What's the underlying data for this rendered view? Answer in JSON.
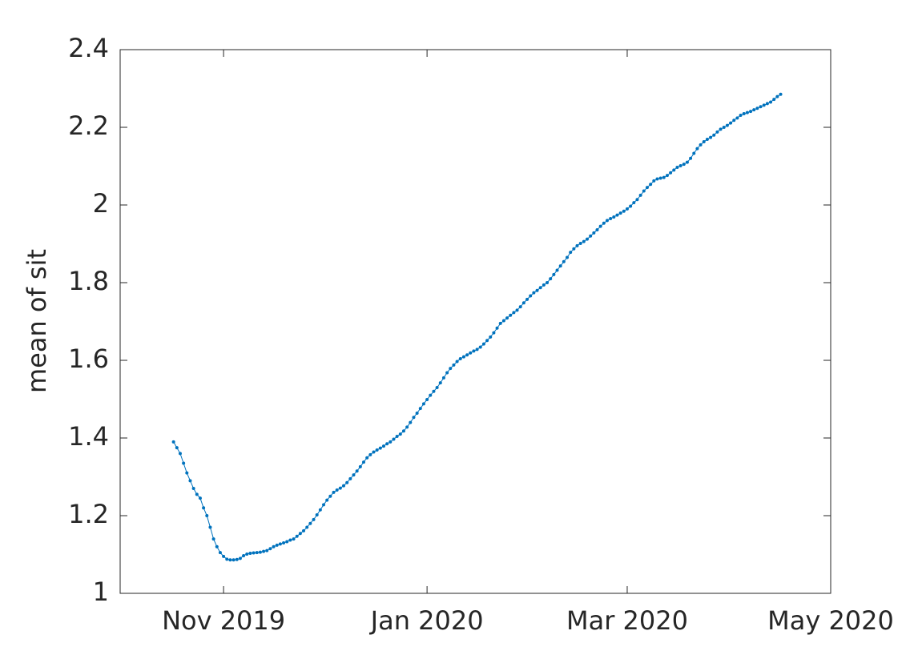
{
  "chart_data": {
    "type": "line",
    "y_label": "mean of sit",
    "x": [
      "2019-10-17",
      "2019-10-18",
      "2019-10-19",
      "2019-10-20",
      "2019-10-21",
      "2019-10-22",
      "2019-10-23",
      "2019-10-24",
      "2019-10-25",
      "2019-10-26",
      "2019-10-27",
      "2019-10-28",
      "2019-10-29",
      "2019-10-30",
      "2019-10-31",
      "2019-11-01",
      "2019-11-02",
      "2019-11-03",
      "2019-11-04",
      "2019-11-05",
      "2019-11-06",
      "2019-11-07",
      "2019-11-08",
      "2019-11-09",
      "2019-11-10",
      "2019-11-11",
      "2019-11-12",
      "2019-11-13",
      "2019-11-14",
      "2019-11-15",
      "2019-11-16",
      "2019-11-17",
      "2019-11-18",
      "2019-11-19",
      "2019-11-20",
      "2019-11-21",
      "2019-11-22",
      "2019-11-23",
      "2019-11-24",
      "2019-11-25",
      "2019-11-26",
      "2019-11-27",
      "2019-11-28",
      "2019-11-29",
      "2019-11-30",
      "2019-12-01",
      "2019-12-02",
      "2019-12-03",
      "2019-12-04",
      "2019-12-05",
      "2019-12-06",
      "2019-12-07",
      "2019-12-08",
      "2019-12-09",
      "2019-12-10",
      "2019-12-11",
      "2019-12-12",
      "2019-12-13",
      "2019-12-14",
      "2019-12-15",
      "2019-12-16",
      "2019-12-17",
      "2019-12-18",
      "2019-12-19",
      "2019-12-20",
      "2019-12-21",
      "2019-12-22",
      "2019-12-23",
      "2019-12-24",
      "2019-12-25",
      "2019-12-26",
      "2019-12-27",
      "2019-12-28",
      "2019-12-29",
      "2019-12-30",
      "2019-12-31",
      "2020-01-01",
      "2020-01-02",
      "2020-01-03",
      "2020-01-04",
      "2020-01-05",
      "2020-01-06",
      "2020-01-07",
      "2020-01-08",
      "2020-01-09",
      "2020-01-10",
      "2020-01-11",
      "2020-01-12",
      "2020-01-13",
      "2020-01-14",
      "2020-01-15",
      "2020-01-16",
      "2020-01-17",
      "2020-01-18",
      "2020-01-19",
      "2020-01-20",
      "2020-01-21",
      "2020-01-22",
      "2020-01-23",
      "2020-01-24",
      "2020-01-25",
      "2020-01-26",
      "2020-01-27",
      "2020-01-28",
      "2020-01-29",
      "2020-01-30",
      "2020-01-31",
      "2020-02-01",
      "2020-02-02",
      "2020-02-03",
      "2020-02-04",
      "2020-02-05",
      "2020-02-06",
      "2020-02-07",
      "2020-02-08",
      "2020-02-09",
      "2020-02-10",
      "2020-02-11",
      "2020-02-12",
      "2020-02-13",
      "2020-02-14",
      "2020-02-15",
      "2020-02-16",
      "2020-02-17",
      "2020-02-18",
      "2020-02-19",
      "2020-02-20",
      "2020-02-21",
      "2020-02-22",
      "2020-02-23",
      "2020-02-24",
      "2020-02-25",
      "2020-02-26",
      "2020-02-27",
      "2020-02-28",
      "2020-02-29",
      "2020-03-01",
      "2020-03-02",
      "2020-03-03",
      "2020-03-04",
      "2020-03-05",
      "2020-03-06",
      "2020-03-07",
      "2020-03-08",
      "2020-03-09",
      "2020-03-10",
      "2020-03-11",
      "2020-03-12",
      "2020-03-13",
      "2020-03-14",
      "2020-03-15",
      "2020-03-16",
      "2020-03-17",
      "2020-03-18",
      "2020-03-19",
      "2020-03-20",
      "2020-03-21",
      "2020-03-22",
      "2020-03-23",
      "2020-03-24",
      "2020-03-25",
      "2020-03-26",
      "2020-03-27",
      "2020-03-28",
      "2020-03-29",
      "2020-03-30",
      "2020-03-31",
      "2020-04-01",
      "2020-04-02",
      "2020-04-03",
      "2020-04-04",
      "2020-04-05",
      "2020-04-06",
      "2020-04-07",
      "2020-04-08",
      "2020-04-09",
      "2020-04-10",
      "2020-04-11",
      "2020-04-12",
      "2020-04-13",
      "2020-04-14",
      "2020-04-15",
      "2020-04-16"
    ],
    "series": [
      {
        "color": "#0072bd",
        "values": [
          1.39,
          1.375,
          1.36,
          1.335,
          1.31,
          1.29,
          1.27,
          1.255,
          1.245,
          1.22,
          1.2,
          1.17,
          1.14,
          1.12,
          1.105,
          1.095,
          1.088,
          1.086,
          1.086,
          1.087,
          1.09,
          1.097,
          1.101,
          1.103,
          1.104,
          1.105,
          1.106,
          1.108,
          1.11,
          1.115,
          1.12,
          1.124,
          1.127,
          1.13,
          1.133,
          1.137,
          1.14,
          1.147,
          1.154,
          1.161,
          1.17,
          1.18,
          1.19,
          1.202,
          1.215,
          1.228,
          1.24,
          1.25,
          1.26,
          1.266,
          1.271,
          1.277,
          1.285,
          1.295,
          1.305,
          1.315,
          1.326,
          1.338,
          1.349,
          1.357,
          1.364,
          1.369,
          1.374,
          1.379,
          1.385,
          1.39,
          1.397,
          1.404,
          1.41,
          1.418,
          1.428,
          1.44,
          1.453,
          1.464,
          1.476,
          1.488,
          1.499,
          1.51,
          1.52,
          1.53,
          1.542,
          1.555,
          1.568,
          1.579,
          1.588,
          1.597,
          1.604,
          1.609,
          1.614,
          1.619,
          1.624,
          1.628,
          1.634,
          1.642,
          1.651,
          1.66,
          1.671,
          1.683,
          1.695,
          1.702,
          1.709,
          1.716,
          1.723,
          1.729,
          1.738,
          1.748,
          1.757,
          1.766,
          1.774,
          1.78,
          1.787,
          1.794,
          1.8,
          1.81,
          1.821,
          1.832,
          1.843,
          1.854,
          1.865,
          1.878,
          1.887,
          1.895,
          1.901,
          1.906,
          1.912,
          1.92,
          1.928,
          1.936,
          1.945,
          1.953,
          1.96,
          1.965,
          1.969,
          1.974,
          1.979,
          1.984,
          1.99,
          1.997,
          2.006,
          2.014,
          2.025,
          2.036,
          2.045,
          2.053,
          2.062,
          2.067,
          2.069,
          2.071,
          2.076,
          2.083,
          2.09,
          2.097,
          2.101,
          2.105,
          2.11,
          2.12,
          2.133,
          2.145,
          2.155,
          2.163,
          2.169,
          2.174,
          2.18,
          2.188,
          2.195,
          2.2,
          2.205,
          2.211,
          2.218,
          2.224,
          2.231,
          2.235,
          2.238,
          2.241,
          2.245,
          2.249,
          2.253,
          2.257,
          2.261,
          2.265,
          2.272,
          2.279,
          2.285
        ]
      }
    ],
    "xlim": [
      "2019-10-01",
      "2020-05-01"
    ],
    "xticks": [
      {
        "value": "2019-11-01",
        "label": "Nov 2019"
      },
      {
        "value": "2020-01-01",
        "label": "Jan 2020"
      },
      {
        "value": "2020-03-01",
        "label": "Mar 2020"
      },
      {
        "value": "2020-05-01",
        "label": "May 2020"
      }
    ],
    "ylim": [
      1,
      2.4
    ],
    "yticks": [
      1,
      1.2,
      1.4,
      1.6,
      1.8,
      2,
      2.2,
      2.4
    ],
    "grid": false,
    "markers": true
  }
}
